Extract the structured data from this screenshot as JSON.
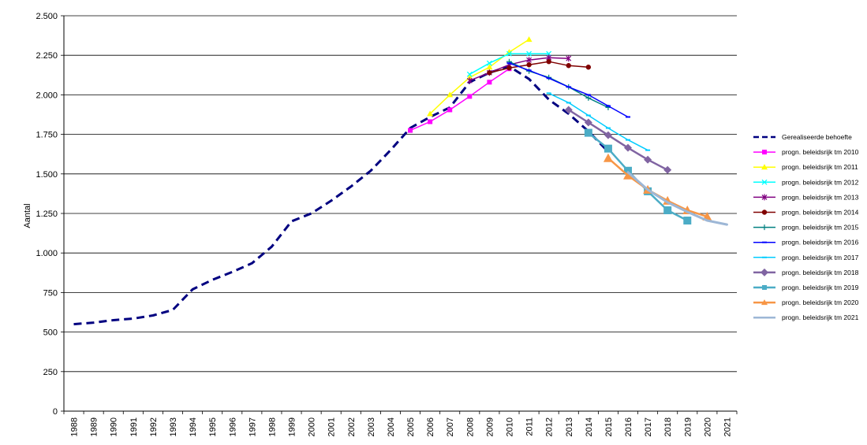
{
  "chart_title": "",
  "chart_data": {
    "type": "line",
    "title": "",
    "xlabel": "",
    "ylabel": "Aantal",
    "ylim": [
      0,
      2500
    ],
    "yticks": [
      0,
      250,
      500,
      750,
      1000,
      1250,
      1500,
      1750,
      2000,
      2250,
      2500
    ],
    "ytick_labels": [
      "0",
      "250",
      "500",
      "750",
      "1.000",
      "1.250",
      "1.500",
      "1.750",
      "2.000",
      "2.250",
      "2.500"
    ],
    "categories": [
      "1988",
      "1989",
      "1990",
      "1991",
      "1992",
      "1993",
      "1994",
      "1995",
      "1996",
      "1997",
      "1998",
      "1999",
      "2000",
      "2001",
      "2002",
      "2003",
      "2004",
      "2005",
      "2006",
      "2007",
      "2008",
      "2009",
      "2010",
      "2011",
      "2012",
      "2013",
      "2014",
      "2015",
      "2016",
      "2017",
      "2018",
      "2019",
      "2020",
      "2021"
    ],
    "grid": "horizontal",
    "legend_position": "right",
    "series": [
      {
        "name": "Gerealiseerde behoefte",
        "color": "#000080",
        "dash": true,
        "marker": "none",
        "width": 3,
        "points": [
          [
            1988,
            550
          ],
          [
            1989,
            560
          ],
          [
            1990,
            575
          ],
          [
            1991,
            585
          ],
          [
            1992,
            605
          ],
          [
            1993,
            640
          ],
          [
            1994,
            770
          ],
          [
            1995,
            830
          ],
          [
            1996,
            880
          ],
          [
            1997,
            935
          ],
          [
            1998,
            1040
          ],
          [
            1999,
            1200
          ],
          [
            2000,
            1250
          ],
          [
            2001,
            1330
          ],
          [
            2002,
            1420
          ],
          [
            2003,
            1520
          ],
          [
            2004,
            1650
          ],
          [
            2005,
            1790
          ],
          [
            2006,
            1860
          ],
          [
            2007,
            1920
          ],
          [
            2008,
            2080
          ],
          [
            2009,
            2140
          ],
          [
            2010,
            2180
          ],
          [
            2011,
            2100
          ],
          [
            2012,
            1970
          ],
          [
            2013,
            1880
          ],
          [
            2014,
            1770
          ],
          [
            2015,
            1640
          ]
        ]
      },
      {
        "name": "progn. beleidsrijk tm 2010",
        "color": "#ff00ff",
        "marker": "square",
        "width": 1.5,
        "points": [
          [
            2005,
            1775
          ],
          [
            2006,
            1830
          ],
          [
            2007,
            1905
          ],
          [
            2008,
            1990
          ],
          [
            2009,
            2080
          ],
          [
            2010,
            2165
          ]
        ]
      },
      {
        "name": "progn. beleidsrijk tm 2011",
        "color": "#ffff00",
        "marker": "triangle",
        "width": 1.5,
        "points": [
          [
            2006,
            1880
          ],
          [
            2007,
            2000
          ],
          [
            2008,
            2110
          ],
          [
            2009,
            2175
          ],
          [
            2010,
            2270
          ],
          [
            2011,
            2350
          ]
        ]
      },
      {
        "name": "progn. beleidsrijk tm 2012",
        "color": "#00ffff",
        "marker": "x",
        "width": 1.5,
        "points": [
          [
            2008,
            2130
          ],
          [
            2009,
            2200
          ],
          [
            2010,
            2260
          ],
          [
            2011,
            2260
          ],
          [
            2012,
            2260
          ]
        ]
      },
      {
        "name": "progn. beleidsrijk tm 2013",
        "color": "#800080",
        "marker": "asterisk",
        "width": 1.5,
        "points": [
          [
            2008,
            2090
          ],
          [
            2009,
            2140
          ],
          [
            2010,
            2190
          ],
          [
            2011,
            2220
          ],
          [
            2012,
            2235
          ],
          [
            2013,
            2230
          ]
        ]
      },
      {
        "name": "progn. beleidsrijk tm 2014",
        "color": "#800000",
        "marker": "circle",
        "width": 1.5,
        "points": [
          [
            2009,
            2140
          ],
          [
            2010,
            2170
          ],
          [
            2011,
            2190
          ],
          [
            2012,
            2210
          ],
          [
            2013,
            2185
          ],
          [
            2014,
            2175
          ]
        ]
      },
      {
        "name": "progn. beleidsrijk tm 2015",
        "color": "#008080",
        "marker": "plus",
        "width": 1.5,
        "points": [
          [
            2010,
            2210
          ],
          [
            2011,
            2150
          ],
          [
            2012,
            2110
          ],
          [
            2013,
            2050
          ],
          [
            2014,
            1980
          ],
          [
            2015,
            1920
          ]
        ]
      },
      {
        "name": "progn. beleidsrijk tm 2016",
        "color": "#0000ff",
        "marker": "dash",
        "width": 1.5,
        "points": [
          [
            2010,
            2200
          ],
          [
            2011,
            2155
          ],
          [
            2012,
            2105
          ],
          [
            2013,
            2050
          ],
          [
            2014,
            2000
          ],
          [
            2015,
            1930
          ],
          [
            2016,
            1860
          ]
        ]
      },
      {
        "name": "progn. beleidsrijk tm 2017",
        "color": "#00ccff",
        "marker": "dash",
        "width": 1.5,
        "points": [
          [
            2012,
            2010
          ],
          [
            2013,
            1950
          ],
          [
            2014,
            1870
          ],
          [
            2015,
            1790
          ],
          [
            2016,
            1715
          ],
          [
            2017,
            1650
          ]
        ]
      },
      {
        "name": "progn. beleidsrijk tm 2018",
        "color": "#8064a2",
        "marker": "diamond",
        "width": 2.5,
        "points": [
          [
            2013,
            1905
          ],
          [
            2014,
            1825
          ],
          [
            2015,
            1745
          ],
          [
            2016,
            1665
          ],
          [
            2017,
            1590
          ],
          [
            2018,
            1525
          ]
        ]
      },
      {
        "name": "progn. beleidsrijk tm 2019",
        "color": "#4bacc6",
        "marker": "bigsquare",
        "width": 2.5,
        "points": [
          [
            2014,
            1760
          ],
          [
            2015,
            1660
          ],
          [
            2016,
            1520
          ],
          [
            2017,
            1390
          ],
          [
            2018,
            1270
          ],
          [
            2019,
            1205
          ]
        ]
      },
      {
        "name": "progn. beleidsrijk tm 2020",
        "color": "#f79646",
        "marker": "bigtriangle",
        "width": 2.5,
        "points": [
          [
            2015,
            1600
          ],
          [
            2016,
            1490
          ],
          [
            2017,
            1400
          ],
          [
            2018,
            1330
          ],
          [
            2019,
            1270
          ],
          [
            2020,
            1230
          ]
        ]
      },
      {
        "name": "progn. beleidsrijk tm 2021",
        "color": "#9db7d6",
        "marker": "none",
        "width": 3,
        "points": [
          [
            2016,
            1510
          ],
          [
            2017,
            1400
          ],
          [
            2018,
            1320
          ],
          [
            2019,
            1260
          ],
          [
            2020,
            1205
          ],
          [
            2021,
            1180
          ]
        ]
      }
    ]
  }
}
